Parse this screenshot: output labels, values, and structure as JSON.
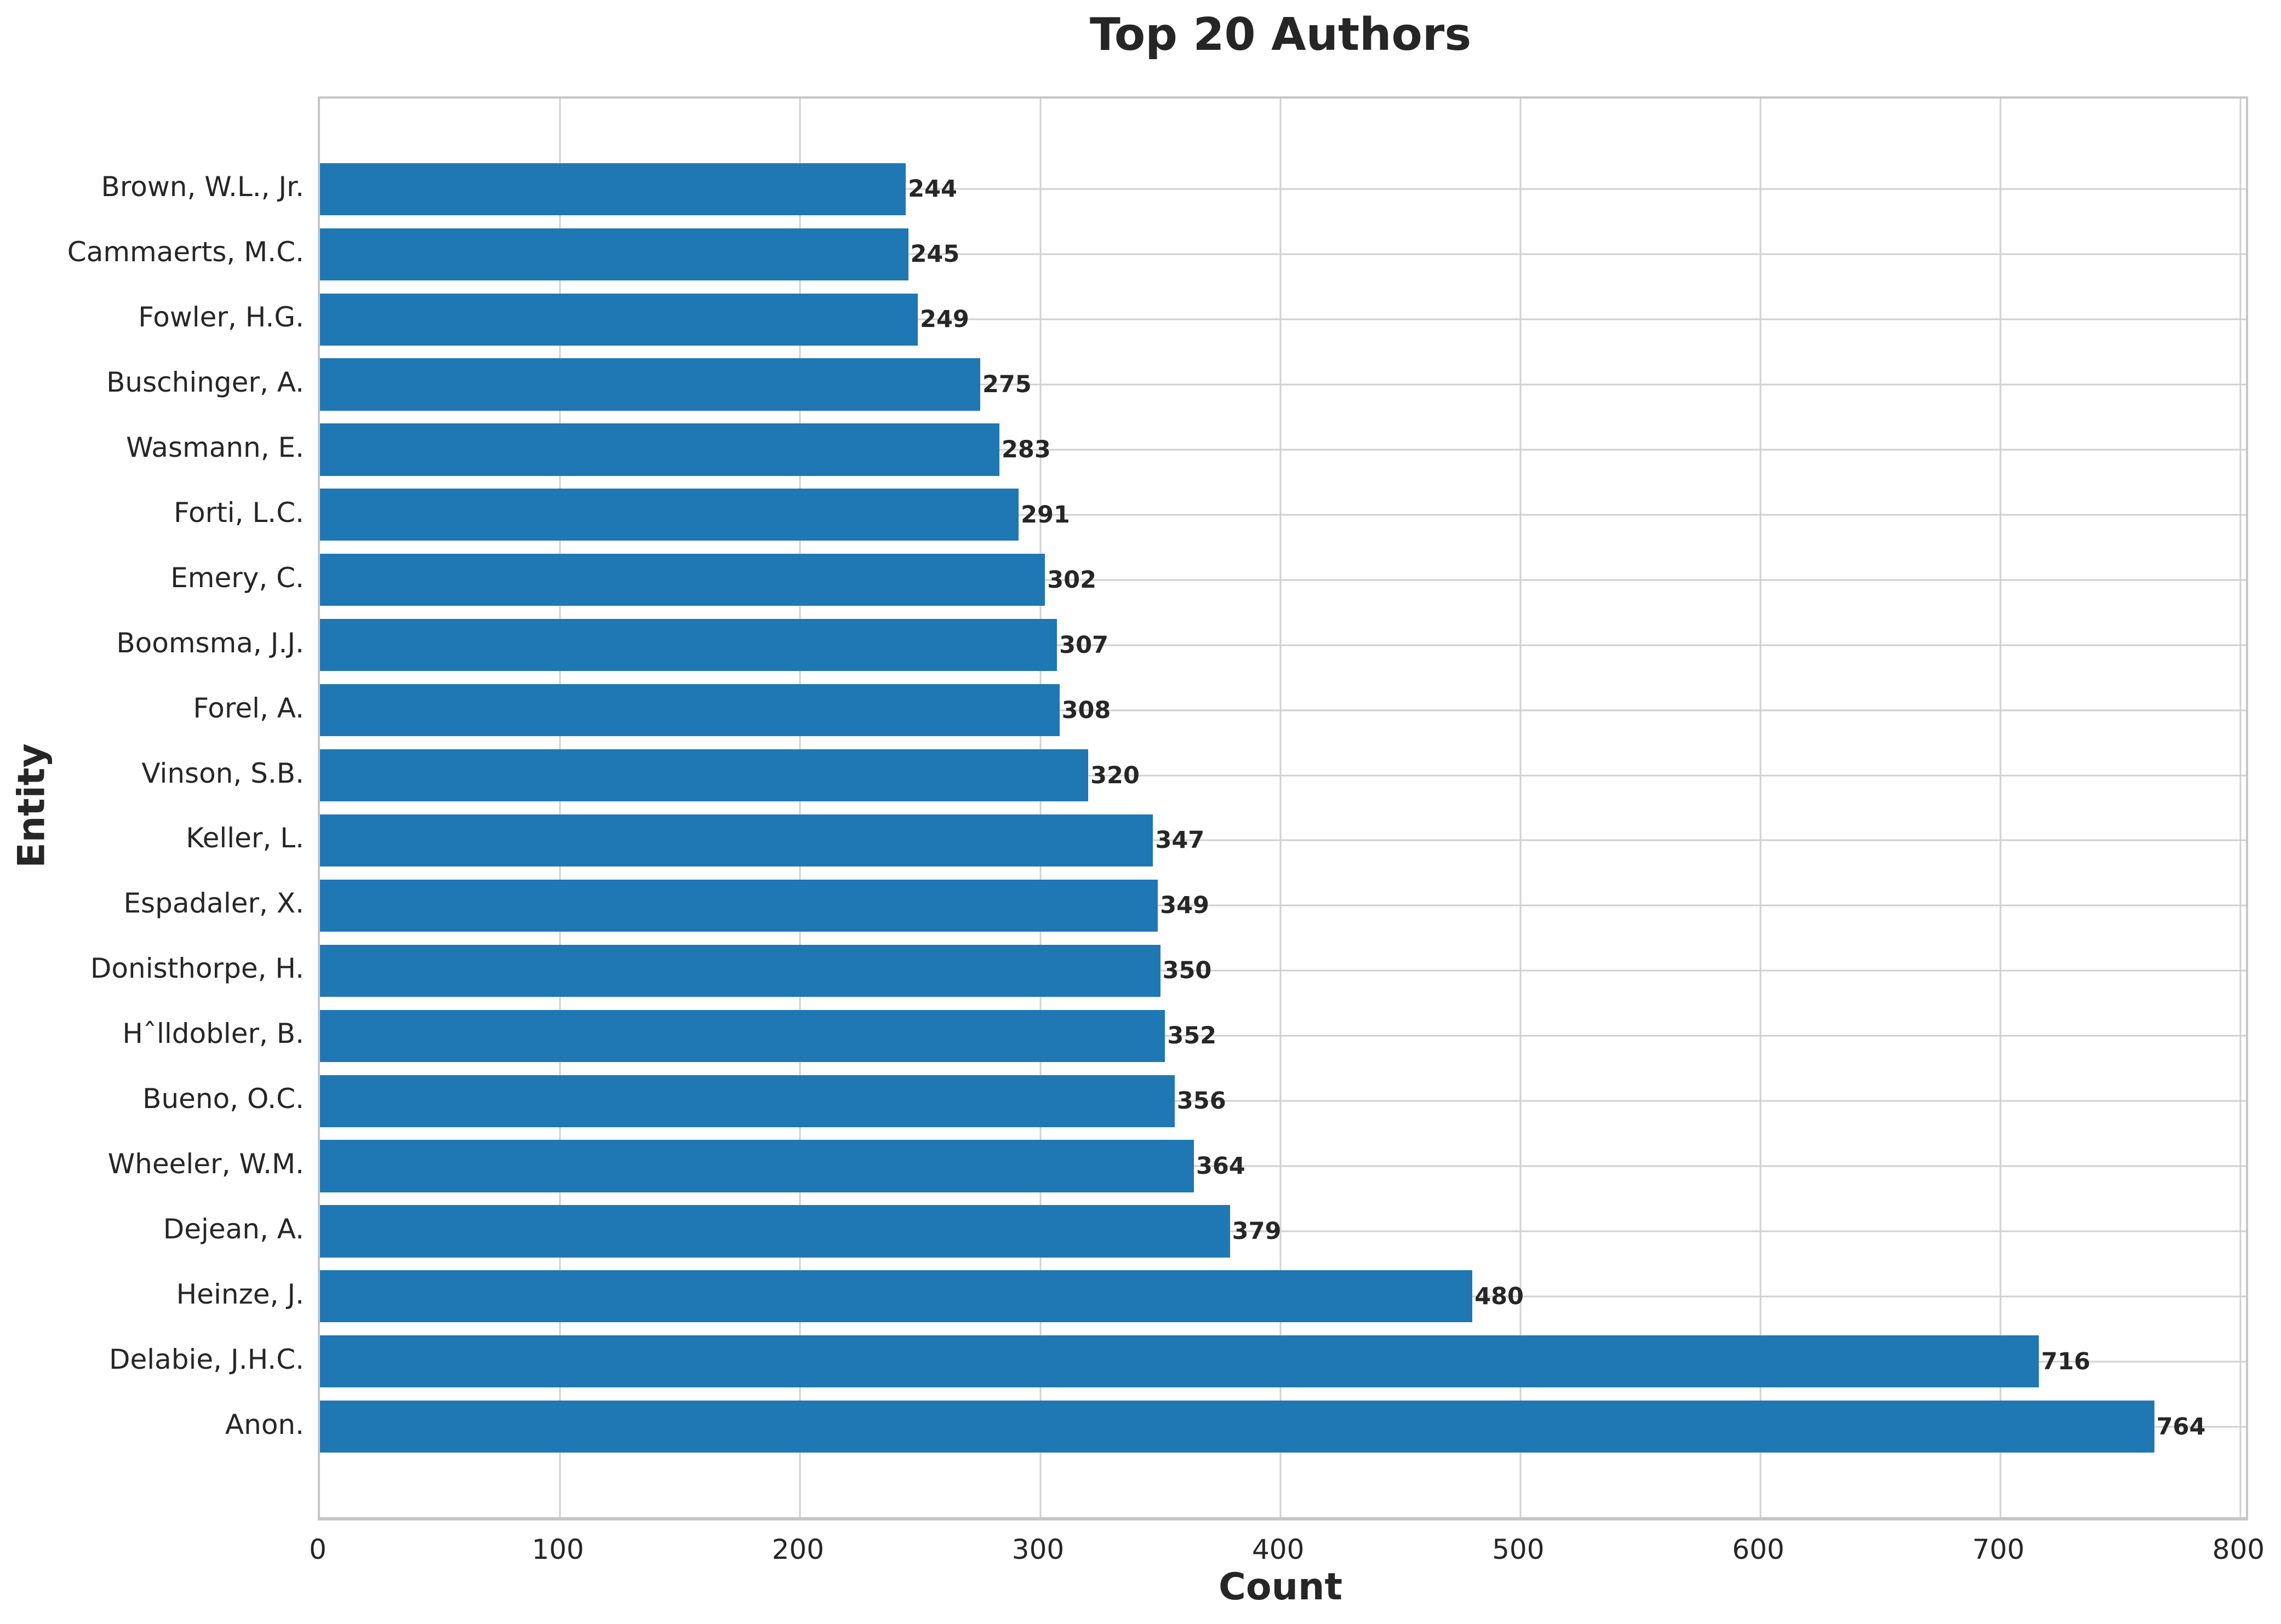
{
  "colors": {
    "bar": "#1f77b4",
    "text": "#262626",
    "grid": "#d0d0d0",
    "spine": "#c6c6c6",
    "background": "#ffffff"
  },
  "chart_data": {
    "type": "bar",
    "orientation": "horizontal",
    "title": "Top 20 Authors",
    "xlabel": "Count",
    "ylabel": "Entity",
    "categories": [
      "Brown, W.L., Jr.",
      "Cammaerts, M.C.",
      "Fowler, H.G.",
      "Buschinger, A.",
      "Wasmann, E.",
      "Forti, L.C.",
      "Emery, C.",
      "Boomsma, J.J.",
      "Forel, A.",
      "Vinson, S.B.",
      "Keller, L.",
      "Espadaler, X.",
      "Donisthorpe, H.",
      "Hˆlldobler, B.",
      "Bueno, O.C.",
      "Wheeler, W.M.",
      "Dejean, A.",
      "Heinze, J.",
      "Delabie, J.H.C.",
      "Anon."
    ],
    "values": [
      244,
      245,
      249,
      275,
      283,
      291,
      302,
      307,
      308,
      320,
      347,
      349,
      350,
      352,
      356,
      364,
      379,
      480,
      716,
      764
    ],
    "xticks": [
      0,
      100,
      200,
      300,
      400,
      500,
      600,
      700,
      800
    ],
    "xlim": [
      0,
      802.2
    ],
    "grid": true,
    "legend": false,
    "bar_height_fraction": 0.8,
    "category_margin_units": 1.39
  }
}
